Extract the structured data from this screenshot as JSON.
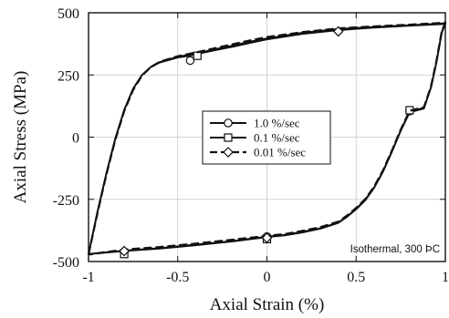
{
  "chart_data": {
    "type": "line",
    "xlabel": "Axial Strain (%)",
    "ylabel": "Axial Stress (MPa)",
    "xlim": [
      -1,
      1
    ],
    "ylim": [
      -500,
      500
    ],
    "xticks": [
      -1,
      -0.5,
      0,
      0.5,
      1
    ],
    "xtick_labels": [
      "-1",
      "-0.5",
      "0",
      "0.5",
      "1"
    ],
    "yticks": [
      -500,
      -250,
      0,
      250,
      500
    ],
    "ytick_labels": [
      "-500",
      "-250",
      "0",
      "250",
      "500"
    ],
    "grid": true,
    "legend_position": "center",
    "annotation": "Isothermal, 300 ÞC",
    "series": [
      {
        "name": "1.0 %/sec",
        "marker": "circle",
        "line_style": "solid",
        "points": [
          [
            -1.0,
            -470
          ],
          [
            -0.95,
            -300
          ],
          [
            -0.9,
            -145
          ],
          [
            -0.85,
            -5
          ],
          [
            -0.8,
            110
          ],
          [
            -0.75,
            195
          ],
          [
            -0.7,
            250
          ],
          [
            -0.65,
            282
          ],
          [
            -0.6,
            300
          ],
          [
            -0.5,
            320
          ],
          [
            -0.45,
            325
          ],
          [
            -0.4,
            333
          ],
          [
            -0.3,
            348
          ],
          [
            -0.2,
            362
          ],
          [
            -0.1,
            378
          ],
          [
            0.0,
            393
          ],
          [
            0.2,
            415
          ],
          [
            0.4,
            430
          ],
          [
            0.6,
            440
          ],
          [
            0.8,
            448
          ],
          [
            1.0,
            455
          ],
          [
            0.98,
            420
          ],
          [
            0.95,
            300
          ],
          [
            0.92,
            200
          ],
          [
            0.88,
            115
          ],
          [
            0.8,
            100
          ],
          [
            0.75,
            25
          ],
          [
            0.7,
            -60
          ],
          [
            0.65,
            -140
          ],
          [
            0.6,
            -205
          ],
          [
            0.55,
            -255
          ],
          [
            0.5,
            -290
          ],
          [
            0.45,
            -320
          ],
          [
            0.4,
            -345
          ],
          [
            0.3,
            -368
          ],
          [
            0.2,
            -383
          ],
          [
            0.1,
            -395
          ],
          [
            0.0,
            -402
          ],
          [
            -0.2,
            -420
          ],
          [
            -0.4,
            -435
          ],
          [
            -0.6,
            -448
          ],
          [
            -0.8,
            -458
          ],
          [
            -1.0,
            -470
          ]
        ],
        "marker_points": [
          [
            -0.43,
            308
          ],
          [
            0.8,
            105
          ],
          [
            0.0,
            -400
          ],
          [
            -0.8,
            -462
          ]
        ]
      },
      {
        "name": "0.1 %/sec",
        "marker": "square",
        "line_style": "solid",
        "points": [
          [
            -1.0,
            -470
          ],
          [
            -0.95,
            -302
          ],
          [
            -0.9,
            -148
          ],
          [
            -0.85,
            -8
          ],
          [
            -0.8,
            108
          ],
          [
            -0.75,
            194
          ],
          [
            -0.7,
            250
          ],
          [
            -0.65,
            283
          ],
          [
            -0.6,
            302
          ],
          [
            -0.5,
            323
          ],
          [
            -0.4,
            336
          ],
          [
            -0.3,
            352
          ],
          [
            -0.2,
            367
          ],
          [
            -0.1,
            383
          ],
          [
            0.0,
            397
          ],
          [
            0.2,
            420
          ],
          [
            0.4,
            435
          ],
          [
            0.6,
            443
          ],
          [
            0.8,
            450
          ],
          [
            1.0,
            458
          ],
          [
            0.98,
            423
          ],
          [
            0.95,
            302
          ],
          [
            0.92,
            202
          ],
          [
            0.88,
            118
          ],
          [
            0.8,
            103
          ],
          [
            0.75,
            28
          ],
          [
            0.7,
            -57
          ],
          [
            0.65,
            -138
          ],
          [
            0.6,
            -203
          ],
          [
            0.55,
            -252
          ],
          [
            0.5,
            -288
          ],
          [
            0.45,
            -318
          ],
          [
            0.4,
            -343
          ],
          [
            0.3,
            -366
          ],
          [
            0.2,
            -380
          ],
          [
            0.1,
            -393
          ],
          [
            0.0,
            -400
          ],
          [
            -0.2,
            -418
          ],
          [
            -0.4,
            -432
          ],
          [
            -0.6,
            -446
          ],
          [
            -0.8,
            -456
          ],
          [
            -1.0,
            -470
          ]
        ],
        "marker_points": [
          [
            -0.39,
            327
          ],
          [
            0.8,
            108
          ],
          [
            0.0,
            -410
          ],
          [
            -0.8,
            -470
          ]
        ]
      },
      {
        "name": "0.01 %/sec",
        "marker": "diamond",
        "line_style": "dashed",
        "points": [
          [
            -1.0,
            -472
          ],
          [
            -0.95,
            -305
          ],
          [
            -0.9,
            -150
          ],
          [
            -0.85,
            -10
          ],
          [
            -0.8,
            105
          ],
          [
            -0.75,
            190
          ],
          [
            -0.7,
            248
          ],
          [
            -0.65,
            282
          ],
          [
            -0.6,
            303
          ],
          [
            -0.5,
            325
          ],
          [
            -0.4,
            340
          ],
          [
            -0.3,
            356
          ],
          [
            -0.2,
            372
          ],
          [
            -0.1,
            388
          ],
          [
            0.0,
            402
          ],
          [
            0.2,
            422
          ],
          [
            0.4,
            437
          ],
          [
            0.6,
            445
          ],
          [
            0.8,
            452
          ],
          [
            1.0,
            460
          ],
          [
            0.98,
            425
          ],
          [
            0.95,
            305
          ],
          [
            0.92,
            205
          ],
          [
            0.88,
            120
          ],
          [
            0.8,
            106
          ],
          [
            0.75,
            30
          ],
          [
            0.7,
            -55
          ],
          [
            0.65,
            -135
          ],
          [
            0.6,
            -200
          ],
          [
            0.55,
            -250
          ],
          [
            0.5,
            -285
          ],
          [
            0.45,
            -315
          ],
          [
            0.4,
            -340
          ],
          [
            0.3,
            -362
          ],
          [
            0.2,
            -377
          ],
          [
            0.1,
            -390
          ],
          [
            0.0,
            -397
          ],
          [
            -0.2,
            -413
          ],
          [
            -0.4,
            -428
          ],
          [
            -0.6,
            -442
          ],
          [
            -0.8,
            -452
          ],
          [
            -1.0,
            -472
          ]
        ],
        "marker_points": [
          [
            0.4,
            425
          ],
          [
            -0.8,
            -458
          ],
          [
            0.0,
            -405
          ]
        ]
      }
    ]
  }
}
